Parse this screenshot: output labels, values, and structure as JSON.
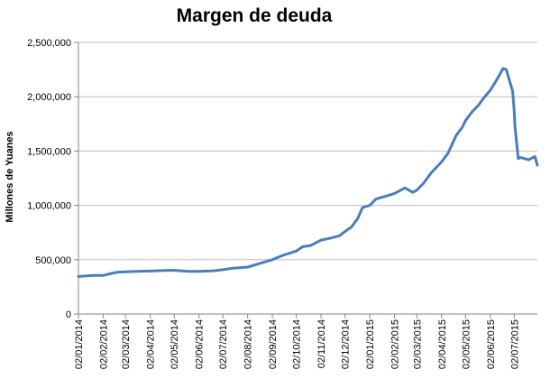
{
  "colors": {
    "series": "#4a7ebb",
    "grid": "#bfbfbf",
    "axis": "#868686"
  },
  "chart_data": {
    "type": "line",
    "title": "Margen de deuda",
    "xlabel": "",
    "ylabel": "Millones de Yuanes",
    "ylim": [
      0,
      2500000
    ],
    "yticks": [
      0,
      500000,
      1000000,
      1500000,
      2000000,
      2500000
    ],
    "ytick_labels": [
      "0",
      "500,000",
      "1,000,000",
      "1,500,000",
      "2,000,000",
      "2,500,000"
    ],
    "xlim": [
      "2014-01-02",
      "2015-07-31"
    ],
    "xticks": [
      "2014-01-02",
      "2014-02-02",
      "2014-03-02",
      "2014-04-02",
      "2014-05-02",
      "2014-06-02",
      "2014-07-02",
      "2014-08-02",
      "2014-09-02",
      "2014-10-02",
      "2014-11-02",
      "2014-12-02",
      "2015-01-02",
      "2015-02-02",
      "2015-03-02",
      "2015-04-02",
      "2015-05-02",
      "2015-06-02",
      "2015-07-02"
    ],
    "xtick_labels": [
      "02/01/2014",
      "02/02/2014",
      "02/03/2014",
      "02/04/2014",
      "02/05/2014",
      "02/06/2014",
      "02/07/2014",
      "02/08/2014",
      "02/09/2014",
      "02/10/2014",
      "02/11/2014",
      "02/12/2014",
      "02/01/2015",
      "02/02/2015",
      "02/03/2015",
      "02/04/2015",
      "02/05/2015",
      "02/06/2015",
      "02/07/2015"
    ],
    "grid": true,
    "legend": "none",
    "series": [
      {
        "x": [
          "2014-01-02",
          "2014-01-06",
          "2014-01-20",
          "2014-02-02",
          "2014-02-10",
          "2014-02-20",
          "2014-03-02",
          "2014-03-15",
          "2014-04-02",
          "2014-04-20",
          "2014-05-02",
          "2014-05-10",
          "2014-05-20",
          "2014-06-02",
          "2014-06-20",
          "2014-07-02",
          "2014-07-15",
          "2014-08-02",
          "2014-08-15",
          "2014-09-02",
          "2014-09-15",
          "2014-10-02",
          "2014-10-10",
          "2014-10-20",
          "2014-11-02",
          "2014-11-15",
          "2014-11-25",
          "2014-12-02",
          "2014-12-10",
          "2014-12-18",
          "2014-12-24",
          "2015-01-02",
          "2015-01-10",
          "2015-01-20",
          "2015-02-02",
          "2015-02-10",
          "2015-02-15",
          "2015-02-25",
          "2015-03-02",
          "2015-03-10",
          "2015-03-20",
          "2015-04-02",
          "2015-04-10",
          "2015-04-15",
          "2015-04-20",
          "2015-04-28",
          "2015-05-02",
          "2015-05-10",
          "2015-05-18",
          "2015-05-25",
          "2015-06-02",
          "2015-06-08",
          "2015-06-12",
          "2015-06-15",
          "2015-06-18",
          "2015-06-22",
          "2015-06-26",
          "2015-06-30",
          "2015-07-02",
          "2015-07-03",
          "2015-07-07",
          "2015-07-10",
          "2015-07-20",
          "2015-07-28",
          "2015-07-31"
        ],
        "values": [
          345000,
          348000,
          355000,
          355000,
          370000,
          385000,
          388000,
          392000,
          395000,
          400000,
          403000,
          398000,
          393000,
          392000,
          398000,
          408000,
          422000,
          432000,
          460000,
          500000,
          540000,
          580000,
          620000,
          630000,
          680000,
          700000,
          720000,
          760000,
          800000,
          880000,
          980000,
          1000000,
          1060000,
          1080000,
          1110000,
          1140000,
          1160000,
          1120000,
          1140000,
          1200000,
          1300000,
          1400000,
          1480000,
          1560000,
          1640000,
          1720000,
          1780000,
          1860000,
          1920000,
          1990000,
          2060000,
          2130000,
          2180000,
          2220000,
          2260000,
          2250000,
          2150000,
          2050000,
          1870000,
          1720000,
          1430000,
          1440000,
          1420000,
          1450000,
          1370000
        ]
      }
    ]
  }
}
